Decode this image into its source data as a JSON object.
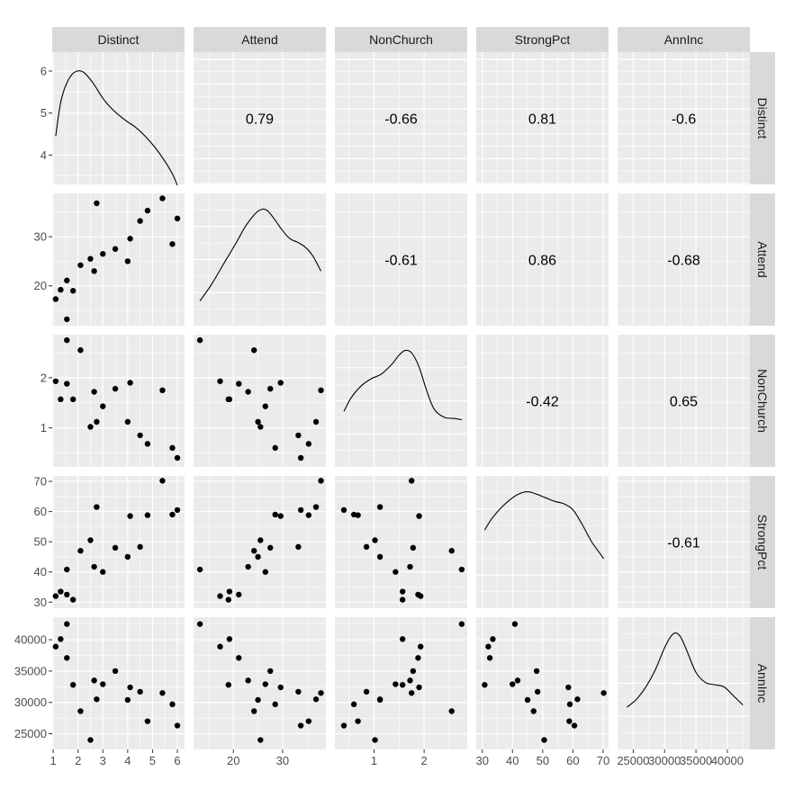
{
  "colors": {
    "panel_bg": "#ebebeb",
    "grid_major": "#ffffff",
    "strip_bg": "#d9d9d9",
    "point": "#000000",
    "density_line": "#000000",
    "axis_text": "#4d4d4d"
  },
  "chart_data": {
    "type": "scatter-matrix",
    "variables": [
      "Distinct",
      "Attend",
      "NonChurch",
      "StrongPct",
      "AnnInc"
    ],
    "observations": [
      {
        "Distinct": 1.1,
        "Attend": 17.3,
        "NonChurch": 1.93,
        "StrongPct": 32.0,
        "AnnInc": 38900
      },
      {
        "Distinct": 1.3,
        "Attend": 19.2,
        "NonChurch": 1.57,
        "StrongPct": 33.5,
        "AnnInc": 40100
      },
      {
        "Distinct": 1.55,
        "Attend": 21.1,
        "NonChurch": 1.88,
        "StrongPct": 32.5,
        "AnnInc": 37100
      },
      {
        "Distinct": 1.55,
        "Attend": 13.2,
        "NonChurch": 2.75,
        "StrongPct": 40.8,
        "AnnInc": 42500
      },
      {
        "Distinct": 1.8,
        "Attend": 19.0,
        "NonChurch": 1.57,
        "StrongPct": 30.8,
        "AnnInc": 32800
      },
      {
        "Distinct": 2.1,
        "Attend": 24.2,
        "NonChurch": 2.55,
        "StrongPct": 47.0,
        "AnnInc": 28600
      },
      {
        "Distinct": 2.5,
        "Attend": 25.5,
        "NonChurch": 1.02,
        "StrongPct": 50.5,
        "AnnInc": 24000
      },
      {
        "Distinct": 2.65,
        "Attend": 23.0,
        "NonChurch": 1.72,
        "StrongPct": 41.7,
        "AnnInc": 33500
      },
      {
        "Distinct": 2.75,
        "Attend": 36.8,
        "NonChurch": 1.12,
        "StrongPct": 61.5,
        "AnnInc": 30500
      },
      {
        "Distinct": 3.0,
        "Attend": 26.5,
        "NonChurch": 1.43,
        "StrongPct": 40.0,
        "AnnInc": 32900
      },
      {
        "Distinct": 3.5,
        "Attend": 27.5,
        "NonChurch": 1.78,
        "StrongPct": 48.0,
        "AnnInc": 35000
      },
      {
        "Distinct": 4.0,
        "Attend": 25.0,
        "NonChurch": 1.12,
        "StrongPct": 45.0,
        "AnnInc": 30400
      },
      {
        "Distinct": 4.1,
        "Attend": 29.6,
        "NonChurch": 1.9,
        "StrongPct": 58.5,
        "AnnInc": 32400
      },
      {
        "Distinct": 4.5,
        "Attend": 33.2,
        "NonChurch": 0.85,
        "StrongPct": 48.3,
        "AnnInc": 31700
      },
      {
        "Distinct": 4.8,
        "Attend": 35.3,
        "NonChurch": 0.68,
        "StrongPct": 58.8,
        "AnnInc": 27000
      },
      {
        "Distinct": 5.4,
        "Attend": 37.8,
        "NonChurch": 1.75,
        "StrongPct": 70.2,
        "AnnInc": 31500
      },
      {
        "Distinct": 5.8,
        "Attend": 28.5,
        "NonChurch": 0.6,
        "StrongPct": 59.0,
        "AnnInc": 29700
      },
      {
        "Distinct": 6.0,
        "Attend": 33.7,
        "NonChurch": 0.4,
        "StrongPct": 60.5,
        "AnnInc": 26300
      }
    ],
    "axes": {
      "Distinct": {
        "range": [
          0.96,
          6.29
        ],
        "ticks": [
          1,
          2,
          3,
          4,
          5,
          6
        ],
        "tick_labels": [
          "1",
          "2",
          "3",
          "4",
          "5",
          "6"
        ]
      },
      "Attend": {
        "range": [
          11.9,
          38.8
        ],
        "ticks": [
          20,
          30
        ],
        "tick_labels": [
          "20",
          "30"
        ]
      },
      "NonChurch": {
        "range": [
          0.22,
          2.86
        ],
        "ticks": [
          1,
          2
        ],
        "tick_labels": [
          "1",
          "2"
        ]
      },
      "StrongPct": {
        "range": [
          28.0,
          71.8
        ],
        "ticks": [
          30,
          40,
          50,
          60,
          70
        ],
        "tick_labels": [
          "30",
          "40",
          "50",
          "60",
          "70"
        ]
      },
      "AnnInc": {
        "range": [
          22500,
          43600
        ],
        "ticks": [
          25000,
          30000,
          35000,
          40000
        ],
        "tick_labels": [
          "25000",
          "30000",
          "35000",
          "40000"
        ]
      }
    },
    "diagonal_density_y_ticks": {
      "values": [
        4,
        5,
        6
      ],
      "labels": [
        "4",
        "5",
        "6"
      ],
      "range": [
        3.3,
        6.45
      ]
    },
    "densities": {
      "Distinct": [
        [
          1.1,
          4.45
        ],
        [
          1.3,
          5.25
        ],
        [
          1.55,
          5.72
        ],
        [
          1.85,
          5.97
        ],
        [
          2.2,
          5.98
        ],
        [
          2.6,
          5.72
        ],
        [
          3.0,
          5.35
        ],
        [
          3.4,
          5.08
        ],
        [
          3.9,
          4.83
        ],
        [
          4.3,
          4.67
        ],
        [
          4.7,
          4.45
        ],
        [
          5.1,
          4.18
        ],
        [
          5.5,
          3.85
        ],
        [
          5.8,
          3.55
        ],
        [
          6.0,
          3.28
        ]
      ],
      "Attend": [
        [
          13.2,
          0.18
        ],
        [
          15.5,
          0.32
        ],
        [
          18.0,
          0.5
        ],
        [
          20.5,
          0.68
        ],
        [
          22.5,
          0.83
        ],
        [
          24.5,
          0.94
        ],
        [
          25.8,
          0.975
        ],
        [
          27.0,
          0.96
        ],
        [
          28.5,
          0.88
        ],
        [
          30.0,
          0.79
        ],
        [
          31.5,
          0.72
        ],
        [
          33.0,
          0.69
        ],
        [
          34.5,
          0.65
        ],
        [
          36.0,
          0.58
        ],
        [
          37.8,
          0.44
        ]
      ],
      "NonChurch": [
        [
          0.4,
          0.44
        ],
        [
          0.55,
          0.56
        ],
        [
          0.75,
          0.66
        ],
        [
          0.95,
          0.72
        ],
        [
          1.15,
          0.76
        ],
        [
          1.35,
          0.84
        ],
        [
          1.5,
          0.92
        ],
        [
          1.62,
          0.96
        ],
        [
          1.75,
          0.94
        ],
        [
          1.9,
          0.82
        ],
        [
          2.05,
          0.62
        ],
        [
          2.2,
          0.46
        ],
        [
          2.4,
          0.39
        ],
        [
          2.6,
          0.38
        ],
        [
          2.75,
          0.37
        ]
      ],
      "StrongPct": [
        [
          30.8,
          0.62
        ],
        [
          33.0,
          0.71
        ],
        [
          36.0,
          0.8
        ],
        [
          39.0,
          0.87
        ],
        [
          42.0,
          0.92
        ],
        [
          45.0,
          0.94
        ],
        [
          48.0,
          0.92
        ],
        [
          51.0,
          0.89
        ],
        [
          54.0,
          0.86
        ],
        [
          57.0,
          0.84
        ],
        [
          60.0,
          0.79
        ],
        [
          63.0,
          0.67
        ],
        [
          66.0,
          0.53
        ],
        [
          68.5,
          0.44
        ],
        [
          70.2,
          0.38
        ]
      ],
      "AnnInc": [
        [
          24000,
          0.34
        ],
        [
          25500,
          0.41
        ],
        [
          27000,
          0.52
        ],
        [
          28500,
          0.67
        ],
        [
          30000,
          0.87
        ],
        [
          31000,
          0.97
        ],
        [
          31700,
          1.0
        ],
        [
          32500,
          0.97
        ],
        [
          33500,
          0.85
        ],
        [
          35000,
          0.65
        ],
        [
          36500,
          0.56
        ],
        [
          38000,
          0.54
        ],
        [
          39500,
          0.52
        ],
        [
          41000,
          0.44
        ],
        [
          42500,
          0.36
        ]
      ]
    },
    "correlations": [
      {
        "row": "Attend",
        "col": "Distinct",
        "text": "0.79"
      },
      {
        "row": "NonChurch",
        "col": "Distinct",
        "text": "-0.66"
      },
      {
        "row": "StrongPct",
        "col": "Distinct",
        "text": "0.81"
      },
      {
        "row": "AnnInc",
        "col": "Distinct",
        "text": "-0.6"
      },
      {
        "row": "NonChurch",
        "col": "Attend",
        "text": "-0.61"
      },
      {
        "row": "StrongPct",
        "col": "Attend",
        "text": "0.86"
      },
      {
        "row": "AnnInc",
        "col": "Attend",
        "text": "-0.68"
      },
      {
        "row": "StrongPct",
        "col": "NonChurch",
        "text": "-0.42"
      },
      {
        "row": "AnnInc",
        "col": "NonChurch",
        "text": "0.65"
      },
      {
        "row": "AnnInc",
        "col": "StrongPct",
        "text": "-0.61"
      }
    ]
  }
}
